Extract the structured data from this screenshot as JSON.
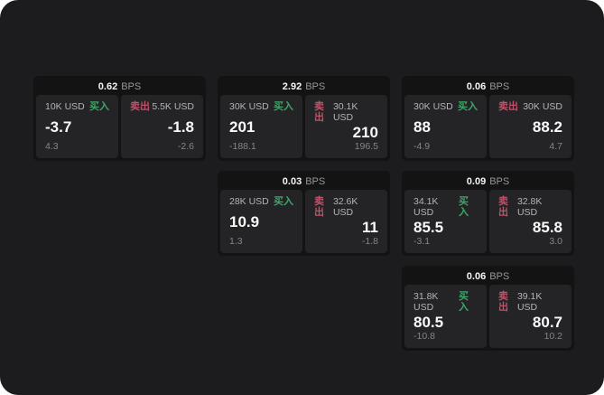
{
  "colors": {
    "screen_background": "#1c1c1e",
    "card_background": "#131314",
    "panel_background": "#242426",
    "buy": "#40a568",
    "sell": "#c25068"
  },
  "labels": {
    "bps_unit": "BPS",
    "buy": "买入",
    "sell": "卖出"
  },
  "cards": [
    {
      "grid": {
        "row": 1,
        "col": 1
      },
      "bps": "0.62",
      "buy": {
        "amount": "10K USD",
        "value": "-3.7",
        "sub": "4.3"
      },
      "sell": {
        "amount": "5.5K USD",
        "value": "-1.8",
        "sub": "-2.6"
      }
    },
    {
      "grid": {
        "row": 1,
        "col": 2
      },
      "bps": "2.92",
      "buy": {
        "amount": "30K USD",
        "value": "201",
        "sub": "-188.1"
      },
      "sell": {
        "amount": "30.1K USD",
        "value": "210",
        "sub": "196.5"
      }
    },
    {
      "grid": {
        "row": 1,
        "col": 3
      },
      "bps": "0.06",
      "buy": {
        "amount": "30K USD",
        "value": "88",
        "sub": "-4.9"
      },
      "sell": {
        "amount": "30K USD",
        "value": "88.2",
        "sub": "4.7"
      }
    },
    {
      "grid": {
        "row": 2,
        "col": 2
      },
      "bps": "0.03",
      "buy": {
        "amount": "28K USD",
        "value": "10.9",
        "sub": "1.3"
      },
      "sell": {
        "amount": "32.6K USD",
        "value": "11",
        "sub": "-1.8"
      }
    },
    {
      "grid": {
        "row": 2,
        "col": 3
      },
      "bps": "0.09",
      "buy": {
        "amount": "34.1K USD",
        "value": "85.5",
        "sub": "-3.1"
      },
      "sell": {
        "amount": "32.8K USD",
        "value": "85.8",
        "sub": "3.0"
      }
    },
    {
      "grid": {
        "row": 3,
        "col": 3
      },
      "bps": "0.06",
      "buy": {
        "amount": "31.8K USD",
        "value": "80.5",
        "sub": "-10.8"
      },
      "sell": {
        "amount": "39.1K USD",
        "value": "80.7",
        "sub": "10.2"
      }
    }
  ]
}
